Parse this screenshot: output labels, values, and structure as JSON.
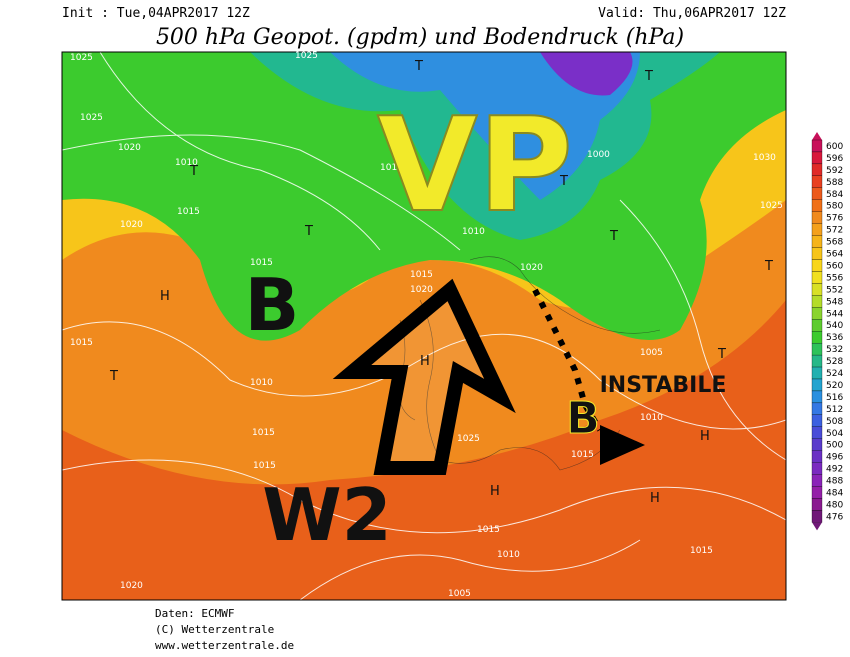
{
  "header": {
    "init": "Init : Tue,04APR2017 12Z",
    "valid": "Valid: Thu,06APR2017 12Z",
    "title": "500 hPa Geopot. (gpdm) und Bodendruck (hPa)"
  },
  "annotations": [
    "VP",
    "B",
    "W2",
    "INSTABILE",
    "B"
  ],
  "centers": [
    "T",
    "T",
    "T",
    "T",
    "T",
    "T",
    "T",
    "T",
    "H",
    "H",
    "H",
    "H",
    "H",
    "T"
  ],
  "pressure_labels": [
    "1015",
    "1025",
    "1025",
    "1020",
    "1010",
    "1015",
    "1020",
    "1025",
    "1010",
    "1010",
    "1010",
    "1000",
    "1030",
    "1025",
    "1015",
    "1020",
    "1015",
    "1010",
    "1015",
    "1015",
    "1025",
    "1015",
    "1015",
    "1010",
    "1005",
    "1015",
    "1020",
    "1010",
    "1005",
    "1015",
    "1020"
  ],
  "legend": {
    "labels": [
      "600",
      "596",
      "592",
      "588",
      "584",
      "580",
      "576",
      "572",
      "568",
      "564",
      "560",
      "556",
      "552",
      "548",
      "544",
      "540",
      "536",
      "532",
      "528",
      "524",
      "520",
      "516",
      "512",
      "508",
      "504",
      "500",
      "496",
      "492",
      "488",
      "484",
      "480",
      "476"
    ]
  },
  "footer": [
    "Daten: ECMWF",
    "(C) Wetterzentrale",
    "www.wetterzentrale.de"
  ]
}
